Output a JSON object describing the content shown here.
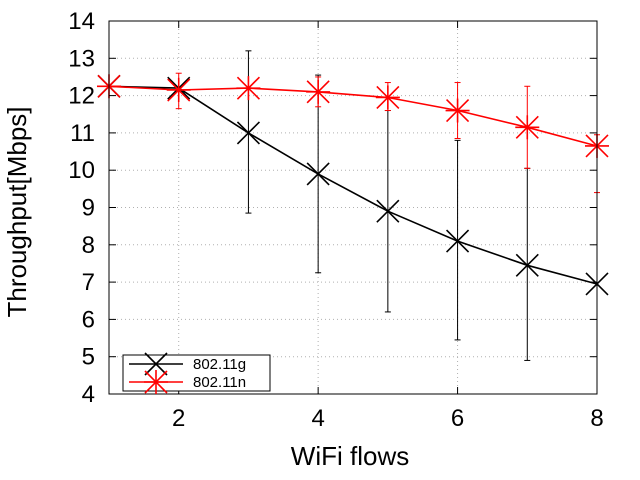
{
  "chart_data": {
    "type": "line",
    "xlabel": "WiFi flows",
    "ylabel": "Throughput[Mbps]",
    "xlim": [
      1,
      8
    ],
    "ylim": [
      4,
      14
    ],
    "xticks": [
      2,
      4,
      6,
      8
    ],
    "yticks": [
      4,
      5,
      6,
      7,
      8,
      9,
      10,
      11,
      12,
      13,
      14
    ],
    "grid": true,
    "legend_position": "bottom-left",
    "x": [
      1,
      2,
      3,
      4,
      5,
      6,
      7,
      8
    ],
    "series": [
      {
        "name": "802.11g",
        "color": "#000000",
        "marker": "x",
        "values": [
          12.25,
          12.2,
          11.0,
          9.9,
          8.9,
          8.1,
          7.45,
          6.95
        ],
        "error_low": [
          null,
          null,
          8.85,
          7.25,
          6.2,
          5.45,
          4.9,
          null
        ],
        "error_high": [
          null,
          null,
          13.2,
          12.55,
          11.6,
          10.8,
          10.05,
          null
        ]
      },
      {
        "name": "802.11n",
        "color": "#ff0000",
        "marker": "star",
        "values": [
          12.25,
          12.15,
          12.2,
          12.1,
          11.95,
          11.6,
          11.15,
          10.65
        ],
        "error_low": [
          null,
          11.65,
          null,
          11.7,
          11.6,
          10.85,
          10.05,
          9.4
        ],
        "error_high": [
          null,
          12.6,
          null,
          12.5,
          12.35,
          12.35,
          12.25,
          10.95
        ]
      }
    ]
  }
}
